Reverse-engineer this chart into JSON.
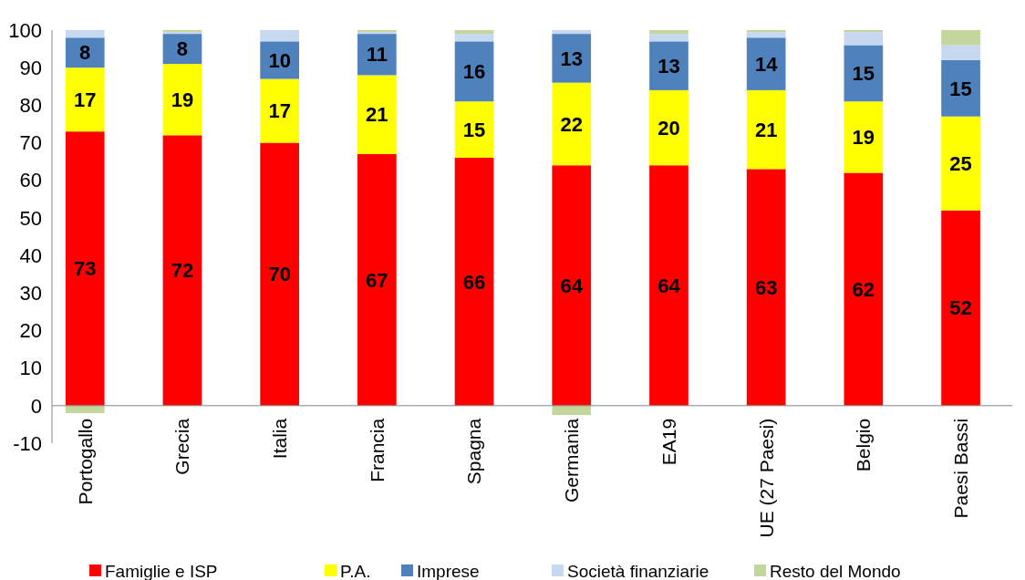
{
  "chart_data": {
    "type": "bar",
    "stacked": true,
    "categories": [
      "Portogallo",
      "Grecia",
      "Italia",
      "Francia",
      "Spagna",
      "Germania",
      "EA19",
      "UE (27 Paesi)",
      "Belgio",
      "Paesi Bassi"
    ],
    "series": [
      {
        "name": "Famiglie e ISP",
        "color": "#ff0000",
        "values": [
          73,
          72,
          70,
          67,
          66,
          64,
          64,
          63,
          62,
          52
        ],
        "value_labels": [
          "73",
          "72",
          "70",
          "67",
          "66",
          "64",
          "64",
          "63",
          "62",
          "52"
        ]
      },
      {
        "name": "P.A.",
        "color": "#ffff00",
        "values": [
          17,
          19,
          17,
          21,
          15,
          22,
          20,
          21,
          19,
          25
        ],
        "value_labels": [
          "17",
          "19",
          "17",
          "21",
          "15",
          "22",
          "20",
          "21",
          "19",
          "25"
        ]
      },
      {
        "name": "Imprese",
        "color": "#4f81bd",
        "values": [
          8,
          8,
          10,
          11,
          16,
          13,
          13,
          14,
          15,
          15
        ],
        "value_labels": [
          "8",
          "8",
          "10",
          "11",
          "16",
          "13",
          "13",
          "14",
          "15",
          "15"
        ]
      },
      {
        "name": "Società finanziarie",
        "color": "#c6d9f1",
        "values": [
          2,
          0.5,
          3,
          0.5,
          2,
          1,
          2,
          1.5,
          3.5,
          4
        ]
      },
      {
        "name": "Resto del Mondo",
        "color": "#c3d69b",
        "values": [
          -2,
          0.5,
          0,
          0.5,
          1,
          -2.5,
          1,
          0.5,
          0.5,
          4
        ]
      }
    ],
    "ylim": [
      -10,
      100
    ],
    "yticks": [
      -10,
      0,
      10,
      20,
      30,
      40,
      50,
      60,
      70,
      80,
      90,
      100
    ],
    "grid": false,
    "legend": "bottom"
  }
}
